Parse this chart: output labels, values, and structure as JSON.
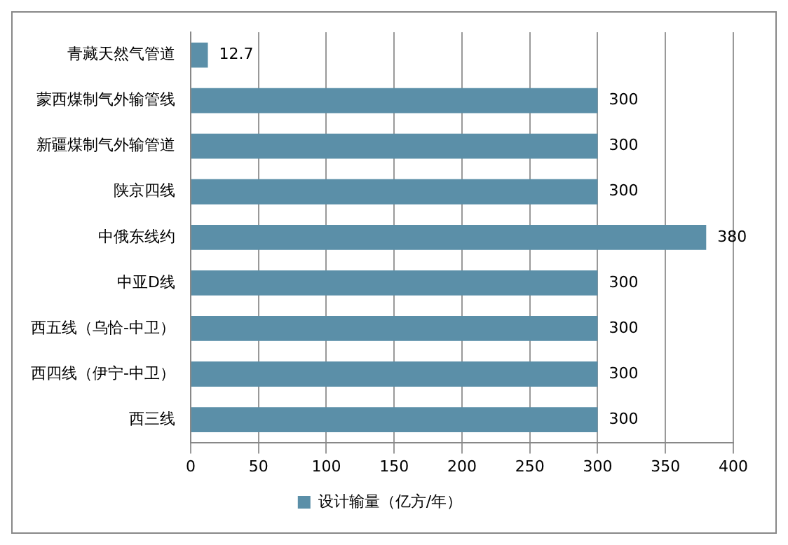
{
  "chart_data": {
    "type": "bar",
    "orientation": "horizontal",
    "categories": [
      "青藏天然气管道",
      "蒙西煤制气外输管线",
      "新疆煤制气外输管道",
      "陕京四线",
      "中俄东线约",
      "中亚D线",
      "西五线（乌恰-中卫）",
      "西四线（伊宁-中卫）",
      "西三线"
    ],
    "series": [
      {
        "name": "设计输量（亿方/年）",
        "color": "#5b8fa8",
        "values": [
          12.7,
          300,
          300,
          300,
          380,
          300,
          300,
          300,
          300
        ]
      }
    ],
    "xlim": [
      0,
      400
    ],
    "xticks": [
      0,
      50,
      100,
      150,
      200,
      250,
      300,
      350,
      400
    ],
    "grid": "x",
    "legend": "bottom",
    "data_labels": true
  }
}
